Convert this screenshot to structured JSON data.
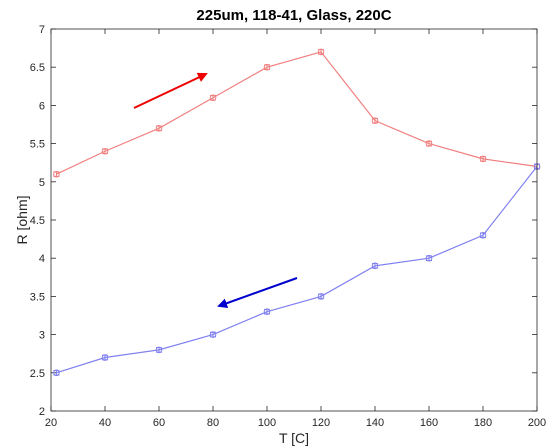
{
  "chart_data": {
    "type": "line",
    "title": "225um, 118-41, Glass, 220C",
    "xlabel": "T [C]",
    "ylabel": "R [ohm]",
    "xlim": [
      20,
      200
    ],
    "ylim": [
      2,
      7
    ],
    "grid": false,
    "x_ticks": [
      "20",
      "40",
      "60",
      "80",
      "100",
      "120",
      "140",
      "160",
      "180",
      "200"
    ],
    "y_ticks": [
      "2",
      "2.5",
      "3",
      "3.5",
      "4",
      "4.5",
      "5",
      "5.5",
      "6",
      "6.5",
      "7"
    ],
    "series": [
      {
        "color": "#f08080",
        "direction_arrow": "up",
        "arrow_color": "#ee0000",
        "x": [
          22,
          40,
          60,
          80,
          100,
          120,
          140,
          160,
          180,
          200
        ],
        "values": [
          5.1,
          5.4,
          5.7,
          6.1,
          6.5,
          6.7,
          5.8,
          5.5,
          5.3,
          5.2
        ],
        "error": [
          0.03,
          0.03,
          0.03,
          0.03,
          0.03,
          0.03,
          0.03,
          0.03,
          0.03,
          0.03
        ]
      },
      {
        "color": "#8080f0",
        "direction_arrow": "down",
        "arrow_color": "#0000cc",
        "x": [
          22,
          40,
          60,
          80,
          100,
          120,
          140,
          160,
          180,
          200
        ],
        "values": [
          2.5,
          2.7,
          2.8,
          3.0,
          3.3,
          3.5,
          3.9,
          4.0,
          4.3,
          5.2
        ],
        "error": [
          0.03,
          0.03,
          0.03,
          0.03,
          0.03,
          0.03,
          0.03,
          0.03,
          0.03,
          0.03
        ]
      }
    ]
  }
}
